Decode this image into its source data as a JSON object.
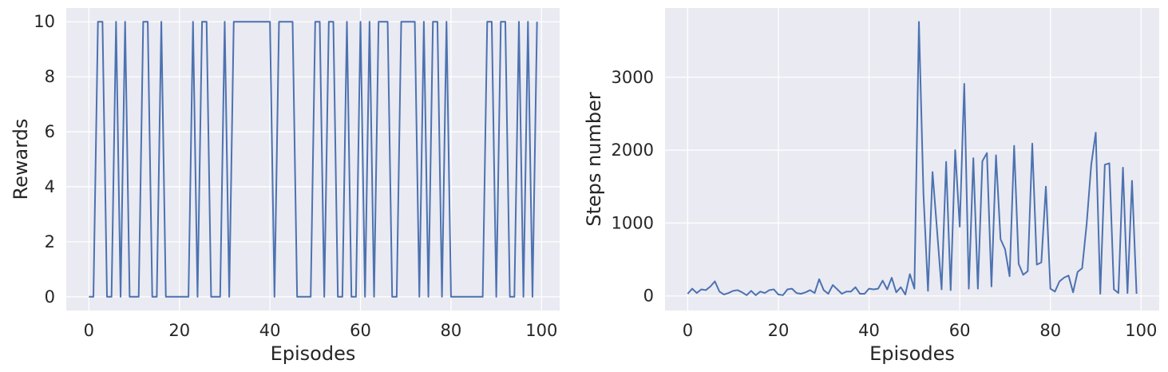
{
  "chart_data": [
    {
      "type": "line",
      "title": "",
      "xlabel": "Episodes",
      "ylabel": "Rewards",
      "xlim": [
        -5,
        104
      ],
      "ylim": [
        -0.5,
        10.5
      ],
      "xticks": [
        0,
        20,
        40,
        60,
        80,
        100
      ],
      "yticks": [
        0,
        2,
        4,
        6,
        8,
        10
      ],
      "xtick_labels": [
        "0",
        "20",
        "40",
        "60",
        "80",
        "100"
      ],
      "ytick_labels": [
        "0",
        "2",
        "4",
        "6",
        "8",
        "10"
      ],
      "grid": true,
      "background": "#eaeaf2",
      "line_color": "#4c72b0",
      "x": [
        0,
        1,
        2,
        3,
        4,
        5,
        6,
        7,
        8,
        9,
        10,
        11,
        12,
        13,
        14,
        15,
        16,
        17,
        18,
        19,
        20,
        21,
        22,
        23,
        24,
        25,
        26,
        27,
        28,
        29,
        30,
        31,
        32,
        33,
        34,
        35,
        36,
        37,
        38,
        39,
        40,
        41,
        42,
        43,
        44,
        45,
        46,
        47,
        48,
        49,
        50,
        51,
        52,
        53,
        54,
        55,
        56,
        57,
        58,
        59,
        60,
        61,
        62,
        63,
        64,
        65,
        66,
        67,
        68,
        69,
        70,
        71,
        72,
        73,
        74,
        75,
        76,
        77,
        78,
        79,
        80,
        81,
        82,
        83,
        84,
        85,
        86,
        87,
        88,
        89,
        90,
        91,
        92,
        93,
        94,
        95,
        96,
        97,
        98,
        99
      ],
      "series": [
        {
          "values": [
            0,
            0,
            10,
            10,
            0,
            0,
            10,
            0,
            10,
            0,
            0,
            0,
            10,
            10,
            0,
            0,
            10,
            0,
            0,
            0,
            0,
            0,
            0,
            10,
            0,
            10,
            10,
            0,
            0,
            0,
            10,
            0,
            10,
            10,
            10,
            10,
            10,
            10,
            10,
            10,
            10,
            0,
            10,
            10,
            10,
            10,
            0,
            0,
            0,
            0,
            10,
            10,
            0,
            10,
            10,
            0,
            0,
            10,
            0,
            0,
            10,
            0,
            10,
            0,
            10,
            10,
            10,
            0,
            0,
            10,
            10,
            10,
            10,
            0,
            10,
            0,
            10,
            10,
            0,
            10,
            0,
            0,
            0,
            0,
            0,
            0,
            0,
            0,
            10,
            10,
            0,
            10,
            10,
            0,
            0,
            10,
            0,
            10,
            0,
            10
          ]
        }
      ]
    },
    {
      "type": "line",
      "title": "",
      "xlabel": "Episodes",
      "ylabel": "Steps number",
      "xlim": [
        -5,
        104
      ],
      "ylim": [
        -200,
        3950
      ],
      "xticks": [
        0,
        20,
        40,
        60,
        80,
        100
      ],
      "yticks": [
        0,
        1000,
        2000,
        3000
      ],
      "xtick_labels": [
        "0",
        "20",
        "40",
        "60",
        "80",
        "100"
      ],
      "ytick_labels": [
        "0",
        "1000",
        "2000",
        "3000"
      ],
      "grid": true,
      "background": "#eaeaf2",
      "line_color": "#4c72b0",
      "x": [
        0,
        1,
        2,
        3,
        4,
        5,
        6,
        7,
        8,
        9,
        10,
        11,
        12,
        13,
        14,
        15,
        16,
        17,
        18,
        19,
        20,
        21,
        22,
        23,
        24,
        25,
        26,
        27,
        28,
        29,
        30,
        31,
        32,
        33,
        34,
        35,
        36,
        37,
        38,
        39,
        40,
        41,
        42,
        43,
        44,
        45,
        46,
        47,
        48,
        49,
        50,
        51,
        52,
        53,
        54,
        55,
        56,
        57,
        58,
        59,
        60,
        61,
        62,
        63,
        64,
        65,
        66,
        67,
        68,
        69,
        70,
        71,
        72,
        73,
        74,
        75,
        76,
        77,
        78,
        79,
        80,
        81,
        82,
        83,
        84,
        85,
        86,
        87,
        88,
        89,
        90,
        91,
        92,
        93,
        94,
        95,
        96,
        97,
        98,
        99
      ],
      "series": [
        {
          "values": [
            30,
            100,
            40,
            90,
            80,
            130,
            200,
            60,
            20,
            40,
            70,
            80,
            50,
            10,
            70,
            10,
            60,
            40,
            80,
            90,
            20,
            10,
            90,
            100,
            40,
            30,
            50,
            80,
            40,
            230,
            80,
            30,
            150,
            90,
            30,
            60,
            60,
            120,
            30,
            30,
            100,
            90,
            100,
            210,
            90,
            250,
            50,
            120,
            20,
            300,
            100,
            3760,
            1400,
            70,
            1700,
            900,
            90,
            1840,
            80,
            2000,
            950,
            2910,
            100,
            1890,
            100,
            1850,
            1960,
            130,
            1930,
            780,
            640,
            270,
            2060,
            440,
            290,
            340,
            2090,
            430,
            460,
            1500,
            100,
            60,
            200,
            250,
            280,
            50,
            330,
            380,
            990,
            1800,
            2240,
            30,
            1800,
            1820,
            90,
            40,
            1760,
            40,
            1580,
            30
          ]
        }
      ]
    }
  ]
}
